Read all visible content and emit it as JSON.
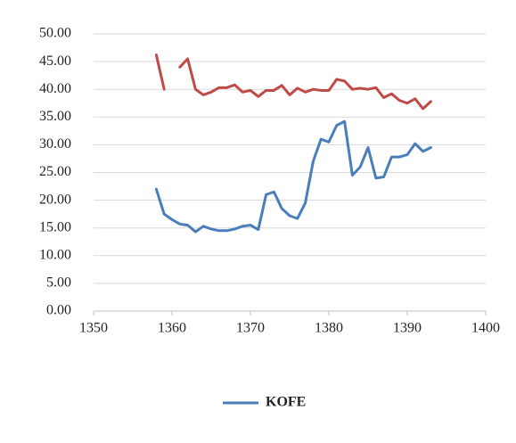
{
  "chart_data": {
    "type": "line",
    "x": [
      1358,
      1359,
      1360,
      1361,
      1362,
      1363,
      1364,
      1365,
      1366,
      1367,
      1368,
      1369,
      1370,
      1371,
      1372,
      1373,
      1374,
      1375,
      1376,
      1377,
      1378,
      1379,
      1380,
      1381,
      1382,
      1383,
      1384,
      1385,
      1386,
      1387,
      1388,
      1389,
      1390,
      1391,
      1392,
      1393
    ],
    "series": [
      {
        "name": "KOFE",
        "color": "#4a7ebb",
        "values": [
          22,
          17.5,
          16.5,
          15.7,
          15.5,
          14.3,
          15.3,
          14.8,
          14.5,
          14.5,
          14.8,
          15.3,
          15.5,
          14.7,
          21,
          21.5,
          18.5,
          17.2,
          16.7,
          19.5,
          27,
          31,
          30.5,
          33.5,
          34.2,
          24.5,
          26,
          29.5,
          24,
          24.2,
          27.8,
          27.8,
          28.2,
          30.2,
          28.8,
          29.5
        ]
      },
      {
        "color": "#be4b48",
        "values": [
          46.2,
          40,
          null,
          44,
          45.5,
          40,
          39,
          39.5,
          40.3,
          40.3,
          40.8,
          39.5,
          39.8,
          38.7,
          39.8,
          39.8,
          40.7,
          39,
          40.2,
          39.5,
          40,
          39.8,
          39.8,
          41.8,
          41.5,
          40,
          40.2,
          40,
          40.3,
          38.5,
          39.2,
          38,
          37.5,
          38.3,
          36.5,
          37.8
        ]
      }
    ],
    "xlim": [
      1350,
      1400
    ],
    "xticks": [
      1350,
      1360,
      1370,
      1380,
      1390,
      1400
    ],
    "ylim": [
      0,
      50
    ],
    "yticks": [
      {
        "value": 0,
        "label": "0.00"
      },
      {
        "value": 5,
        "label": "5.00"
      },
      {
        "value": 10,
        "label": "10.00"
      },
      {
        "value": 15,
        "label": "15.00"
      },
      {
        "value": 20,
        "label": "20.00"
      },
      {
        "value": 25,
        "label": "25.00"
      },
      {
        "value": 30,
        "label": "30.00"
      },
      {
        "value": 35,
        "label": "35.00"
      },
      {
        "value": 40,
        "label": "40.00"
      },
      {
        "value": 45,
        "label": "45.00"
      },
      {
        "value": 50,
        "label": "50.00"
      }
    ],
    "grid": true,
    "legend": "bottom"
  }
}
